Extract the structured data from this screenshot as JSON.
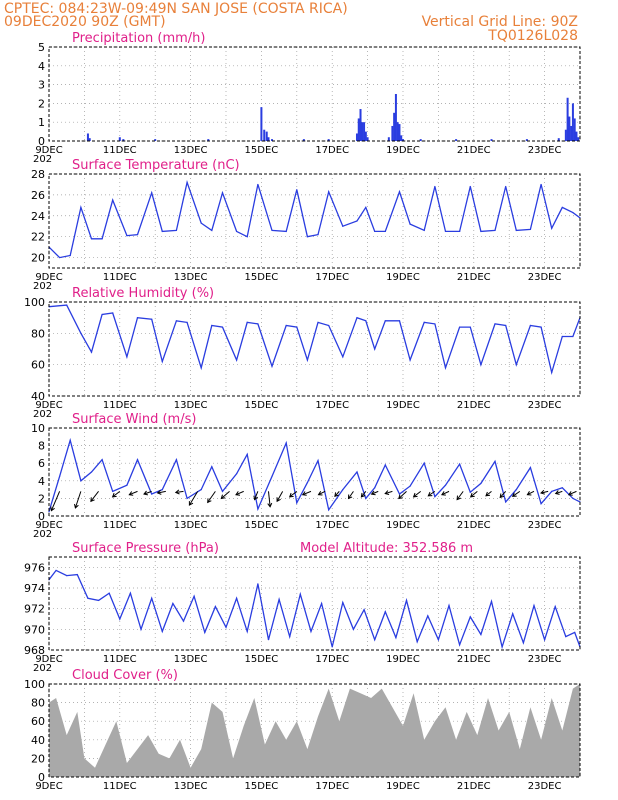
{
  "header": {
    "line1_left": "CPTEC:  084:23W-09:49N  SAN JOSE (COSTA RICA)",
    "line2_left": "09DEC2020 90Z (GMT)",
    "line2_right": "Vertical Grid Line: 90Z",
    "line3_right": "TQ0126L028"
  },
  "colors": {
    "header": "#e8803a",
    "panel_title": "#e0208a",
    "line": "#2a3de0",
    "bars": "#2a3de0",
    "cloud": "#a9a9a9"
  },
  "x_axis": {
    "labels": [
      "9DEC",
      "11DEC",
      "13DEC",
      "15DEC",
      "17DEC",
      "19DEC",
      "21DEC",
      "23DEC"
    ],
    "label_days": [
      9,
      11,
      13,
      15,
      17,
      19,
      21,
      23
    ],
    "day_range": [
      9.0,
      24.0
    ],
    "cutoff_label": "202"
  },
  "chart_data": [
    {
      "type": "bar",
      "title": "Precipitation (mm/h)",
      "ylim": [
        0,
        5
      ],
      "yticks": [
        0,
        1,
        2,
        3,
        4,
        5
      ],
      "grid": true,
      "x": [
        10.1,
        10.15,
        11.0,
        11.1,
        12.0,
        13.5,
        15.0,
        15.08,
        15.15,
        15.2,
        15.3,
        16.2,
        16.9,
        17.7,
        17.75,
        17.8,
        17.85,
        17.9,
        17.95,
        18.0,
        18.6,
        18.7,
        18.75,
        18.8,
        18.85,
        18.9,
        18.95,
        19.0,
        19.5,
        20.5,
        21.5,
        22.5,
        23.4,
        23.6,
        23.65,
        23.7,
        23.75,
        23.8,
        23.85,
        23.9,
        23.95
      ],
      "values": [
        0.4,
        0.15,
        0.2,
        0.1,
        0.1,
        0.1,
        1.8,
        0.6,
        0.5,
        0.2,
        0.1,
        0.1,
        0.1,
        0.4,
        1.2,
        1.7,
        1.0,
        1.0,
        0.5,
        0.2,
        0.2,
        0.8,
        1.5,
        2.5,
        1.0,
        0.9,
        0.3,
        0.1,
        0.1,
        0.1,
        0.1,
        0.1,
        0.15,
        0.6,
        2.3,
        1.3,
        0.8,
        2.0,
        1.2,
        0.5,
        0.2
      ]
    },
    {
      "type": "line",
      "title": "Surface Temperature (nC)",
      "ylim": [
        19,
        28
      ],
      "yticks": [
        20,
        22,
        24,
        26,
        28
      ],
      "grid": true,
      "x": [
        9.0,
        9.3,
        9.6,
        9.9,
        10.2,
        10.5,
        10.8,
        11.2,
        11.5,
        11.9,
        12.2,
        12.6,
        12.9,
        13.3,
        13.6,
        13.9,
        14.3,
        14.6,
        14.9,
        15.3,
        15.7,
        16.0,
        16.3,
        16.6,
        16.9,
        17.3,
        17.7,
        17.95,
        18.2,
        18.5,
        18.9,
        19.2,
        19.6,
        19.9,
        20.2,
        20.6,
        20.9,
        21.2,
        21.6,
        21.9,
        22.2,
        22.6,
        22.9,
        23.2,
        23.5,
        23.8,
        24.0
      ],
      "values": [
        21.0,
        20.0,
        20.2,
        24.8,
        21.8,
        21.8,
        25.5,
        22.1,
        22.2,
        26.2,
        22.5,
        22.6,
        27.2,
        23.3,
        22.6,
        26.2,
        22.5,
        22.0,
        27.0,
        22.6,
        22.5,
        26.5,
        22.0,
        22.2,
        26.3,
        23.0,
        23.5,
        24.8,
        22.5,
        22.5,
        26.3,
        23.2,
        22.6,
        26.8,
        22.5,
        22.5,
        26.8,
        22.5,
        22.6,
        26.8,
        22.6,
        22.7,
        27.0,
        22.8,
        24.8,
        24.3,
        23.8
      ]
    },
    {
      "type": "line",
      "title": "Relative Humidity (%)",
      "ylim": [
        40,
        100
      ],
      "yticks": [
        40,
        60,
        80,
        100
      ],
      "grid": true,
      "x": [
        9.0,
        9.5,
        9.9,
        10.2,
        10.5,
        10.8,
        11.2,
        11.5,
        11.9,
        12.2,
        12.6,
        12.9,
        13.3,
        13.6,
        13.9,
        14.3,
        14.6,
        14.9,
        15.3,
        15.7,
        16.0,
        16.3,
        16.6,
        16.9,
        17.3,
        17.7,
        17.95,
        18.2,
        18.5,
        18.9,
        19.2,
        19.6,
        19.9,
        20.2,
        20.6,
        20.9,
        21.2,
        21.6,
        21.9,
        22.2,
        22.6,
        22.9,
        23.2,
        23.5,
        23.8,
        24.0
      ],
      "values": [
        97,
        98,
        80,
        68,
        92,
        93,
        65,
        90,
        89,
        62,
        88,
        87,
        58,
        85,
        84,
        63,
        87,
        86,
        59,
        85,
        84,
        63,
        87,
        85,
        65,
        90,
        88,
        70,
        88,
        88,
        63,
        87,
        86,
        58,
        84,
        84,
        60,
        86,
        85,
        60,
        85,
        84,
        55,
        78,
        78,
        90
      ]
    },
    {
      "type": "line",
      "title": "Surface Wind (m/s)",
      "ylim": [
        0,
        10
      ],
      "yticks": [
        0,
        2,
        4,
        6,
        8,
        10
      ],
      "grid": true,
      "x": [
        9.0,
        9.3,
        9.6,
        9.9,
        10.2,
        10.5,
        10.8,
        11.2,
        11.5,
        11.9,
        12.2,
        12.6,
        12.9,
        13.3,
        13.6,
        13.9,
        14.3,
        14.6,
        14.9,
        15.3,
        15.7,
        16.0,
        16.3,
        16.6,
        16.9,
        17.3,
        17.7,
        17.95,
        18.2,
        18.5,
        18.9,
        19.2,
        19.6,
        19.9,
        20.2,
        20.6,
        20.9,
        21.2,
        21.6,
        21.9,
        22.2,
        22.6,
        22.9,
        23.2,
        23.5,
        23.8,
        24.0
      ],
      "values": [
        0.5,
        4.5,
        8.6,
        4.0,
        5.0,
        6.4,
        2.8,
        3.5,
        6.4,
        2.5,
        3.0,
        6.4,
        2.0,
        3.0,
        5.6,
        2.8,
        4.8,
        7.0,
        0.8,
        4.5,
        8.3,
        1.5,
        3.8,
        6.3,
        0.7,
        3.0,
        5.0,
        2.0,
        3.2,
        5.8,
        2.5,
        3.4,
        6.0,
        2.2,
        3.5,
        5.9,
        2.7,
        3.7,
        6.2,
        1.6,
        3.0,
        5.5,
        1.4,
        2.8,
        3.2,
        2.0,
        1.6
      ],
      "vectors_x": [
        9.3,
        9.9,
        10.4,
        11.0,
        11.5,
        11.9,
        12.3,
        12.8,
        13.2,
        13.7,
        14.1,
        14.5,
        14.9,
        15.2,
        15.6,
        16.0,
        16.4,
        16.8,
        17.2,
        17.6,
        17.95,
        18.3,
        18.7,
        19.1,
        19.5,
        19.9,
        20.3,
        20.7,
        21.1,
        21.5,
        21.9,
        22.3,
        22.7,
        23.1,
        23.5,
        23.9
      ],
      "vectors_u": [
        -1.5,
        -1.0,
        -1.4,
        -1.3,
        -1.5,
        -1.4,
        -1.5,
        -1.4,
        -1.5,
        -1.4,
        -1.5,
        -1.4,
        -0.6,
        0.3,
        -1.0,
        -1.3,
        -1.5,
        -1.2,
        -0.8,
        -0.9,
        -0.8,
        -1.2,
        -1.3,
        -1.4,
        -1.3,
        -1.2,
        -1.3,
        -1.1,
        -1.2,
        -1.0,
        -1.0,
        -1.3,
        -1.2,
        -1.3,
        -1.2,
        -1.4
      ],
      "vectors_v": [
        -3.5,
        -3.0,
        -1.8,
        -1.0,
        -0.6,
        -0.5,
        -0.3,
        -0.2,
        -2.5,
        -2.0,
        -1.3,
        -0.6,
        -1.5,
        -2.8,
        -1.8,
        -1.0,
        -0.6,
        -0.6,
        -0.9,
        -1.3,
        -1.0,
        -0.5,
        -0.4,
        -1.3,
        -1.0,
        -0.8,
        -0.6,
        -1.5,
        -1.0,
        -0.8,
        -1.1,
        -0.9,
        -0.6,
        -0.3,
        -0.4,
        -0.6
      ]
    },
    {
      "type": "line",
      "title": "Surface Pressure (hPa)",
      "ylim": [
        968,
        977
      ],
      "yticks": [
        968,
        970,
        972,
        974,
        976
      ],
      "grid": true,
      "x": [
        9.0,
        9.2,
        9.5,
        9.8,
        10.1,
        10.4,
        10.7,
        11.0,
        11.3,
        11.6,
        11.9,
        12.2,
        12.5,
        12.8,
        13.1,
        13.4,
        13.7,
        14.0,
        14.3,
        14.6,
        14.9,
        15.2,
        15.5,
        15.8,
        16.1,
        16.4,
        16.7,
        17.0,
        17.3,
        17.6,
        17.9,
        18.2,
        18.5,
        18.8,
        19.1,
        19.4,
        19.7,
        20.0,
        20.3,
        20.6,
        20.9,
        21.2,
        21.5,
        21.8,
        22.1,
        22.4,
        22.7,
        23.0,
        23.3,
        23.6,
        23.85,
        24.0
      ],
      "values": [
        974.8,
        975.7,
        975.2,
        975.3,
        973.0,
        972.8,
        973.5,
        971.0,
        973.5,
        970.0,
        973.0,
        969.8,
        972.5,
        970.8,
        973.2,
        969.7,
        972.2,
        970.2,
        973.0,
        969.8,
        974.4,
        969.0,
        972.9,
        969.3,
        973.4,
        969.8,
        972.5,
        968.3,
        972.6,
        970.0,
        971.9,
        969.0,
        971.7,
        969.2,
        972.8,
        968.8,
        971.3,
        969.0,
        972.3,
        968.5,
        971.2,
        969.5,
        972.7,
        968.3,
        971.5,
        968.7,
        972.3,
        969.0,
        972.2,
        969.3,
        969.7,
        968.3
      ],
      "model_altitude": "Model Altitude: 352.586 m"
    },
    {
      "type": "area",
      "title": "Cloud Cover (%)",
      "ylim": [
        0,
        100
      ],
      "yticks": [
        0,
        20,
        40,
        60,
        80,
        100
      ],
      "grid": true,
      "x": [
        9.0,
        9.2,
        9.5,
        9.8,
        10.0,
        10.3,
        10.6,
        10.9,
        11.2,
        11.5,
        11.8,
        12.1,
        12.4,
        12.7,
        13.0,
        13.3,
        13.6,
        13.9,
        14.2,
        14.5,
        14.8,
        15.1,
        15.4,
        15.7,
        16.0,
        16.3,
        16.6,
        16.9,
        17.2,
        17.5,
        17.8,
        18.1,
        18.4,
        18.7,
        19.0,
        19.3,
        19.6,
        19.9,
        20.2,
        20.5,
        20.8,
        21.1,
        21.4,
        21.7,
        22.0,
        22.3,
        22.6,
        22.9,
        23.2,
        23.5,
        23.8,
        24.0
      ],
      "values": [
        80,
        85,
        45,
        70,
        20,
        10,
        35,
        60,
        15,
        30,
        45,
        25,
        20,
        40,
        10,
        30,
        80,
        70,
        20,
        55,
        85,
        35,
        60,
        40,
        60,
        30,
        65,
        95,
        60,
        95,
        90,
        85,
        95,
        75,
        55,
        90,
        40,
        60,
        75,
        40,
        70,
        45,
        85,
        50,
        70,
        30,
        75,
        40,
        85,
        50,
        95,
        100
      ]
    }
  ]
}
